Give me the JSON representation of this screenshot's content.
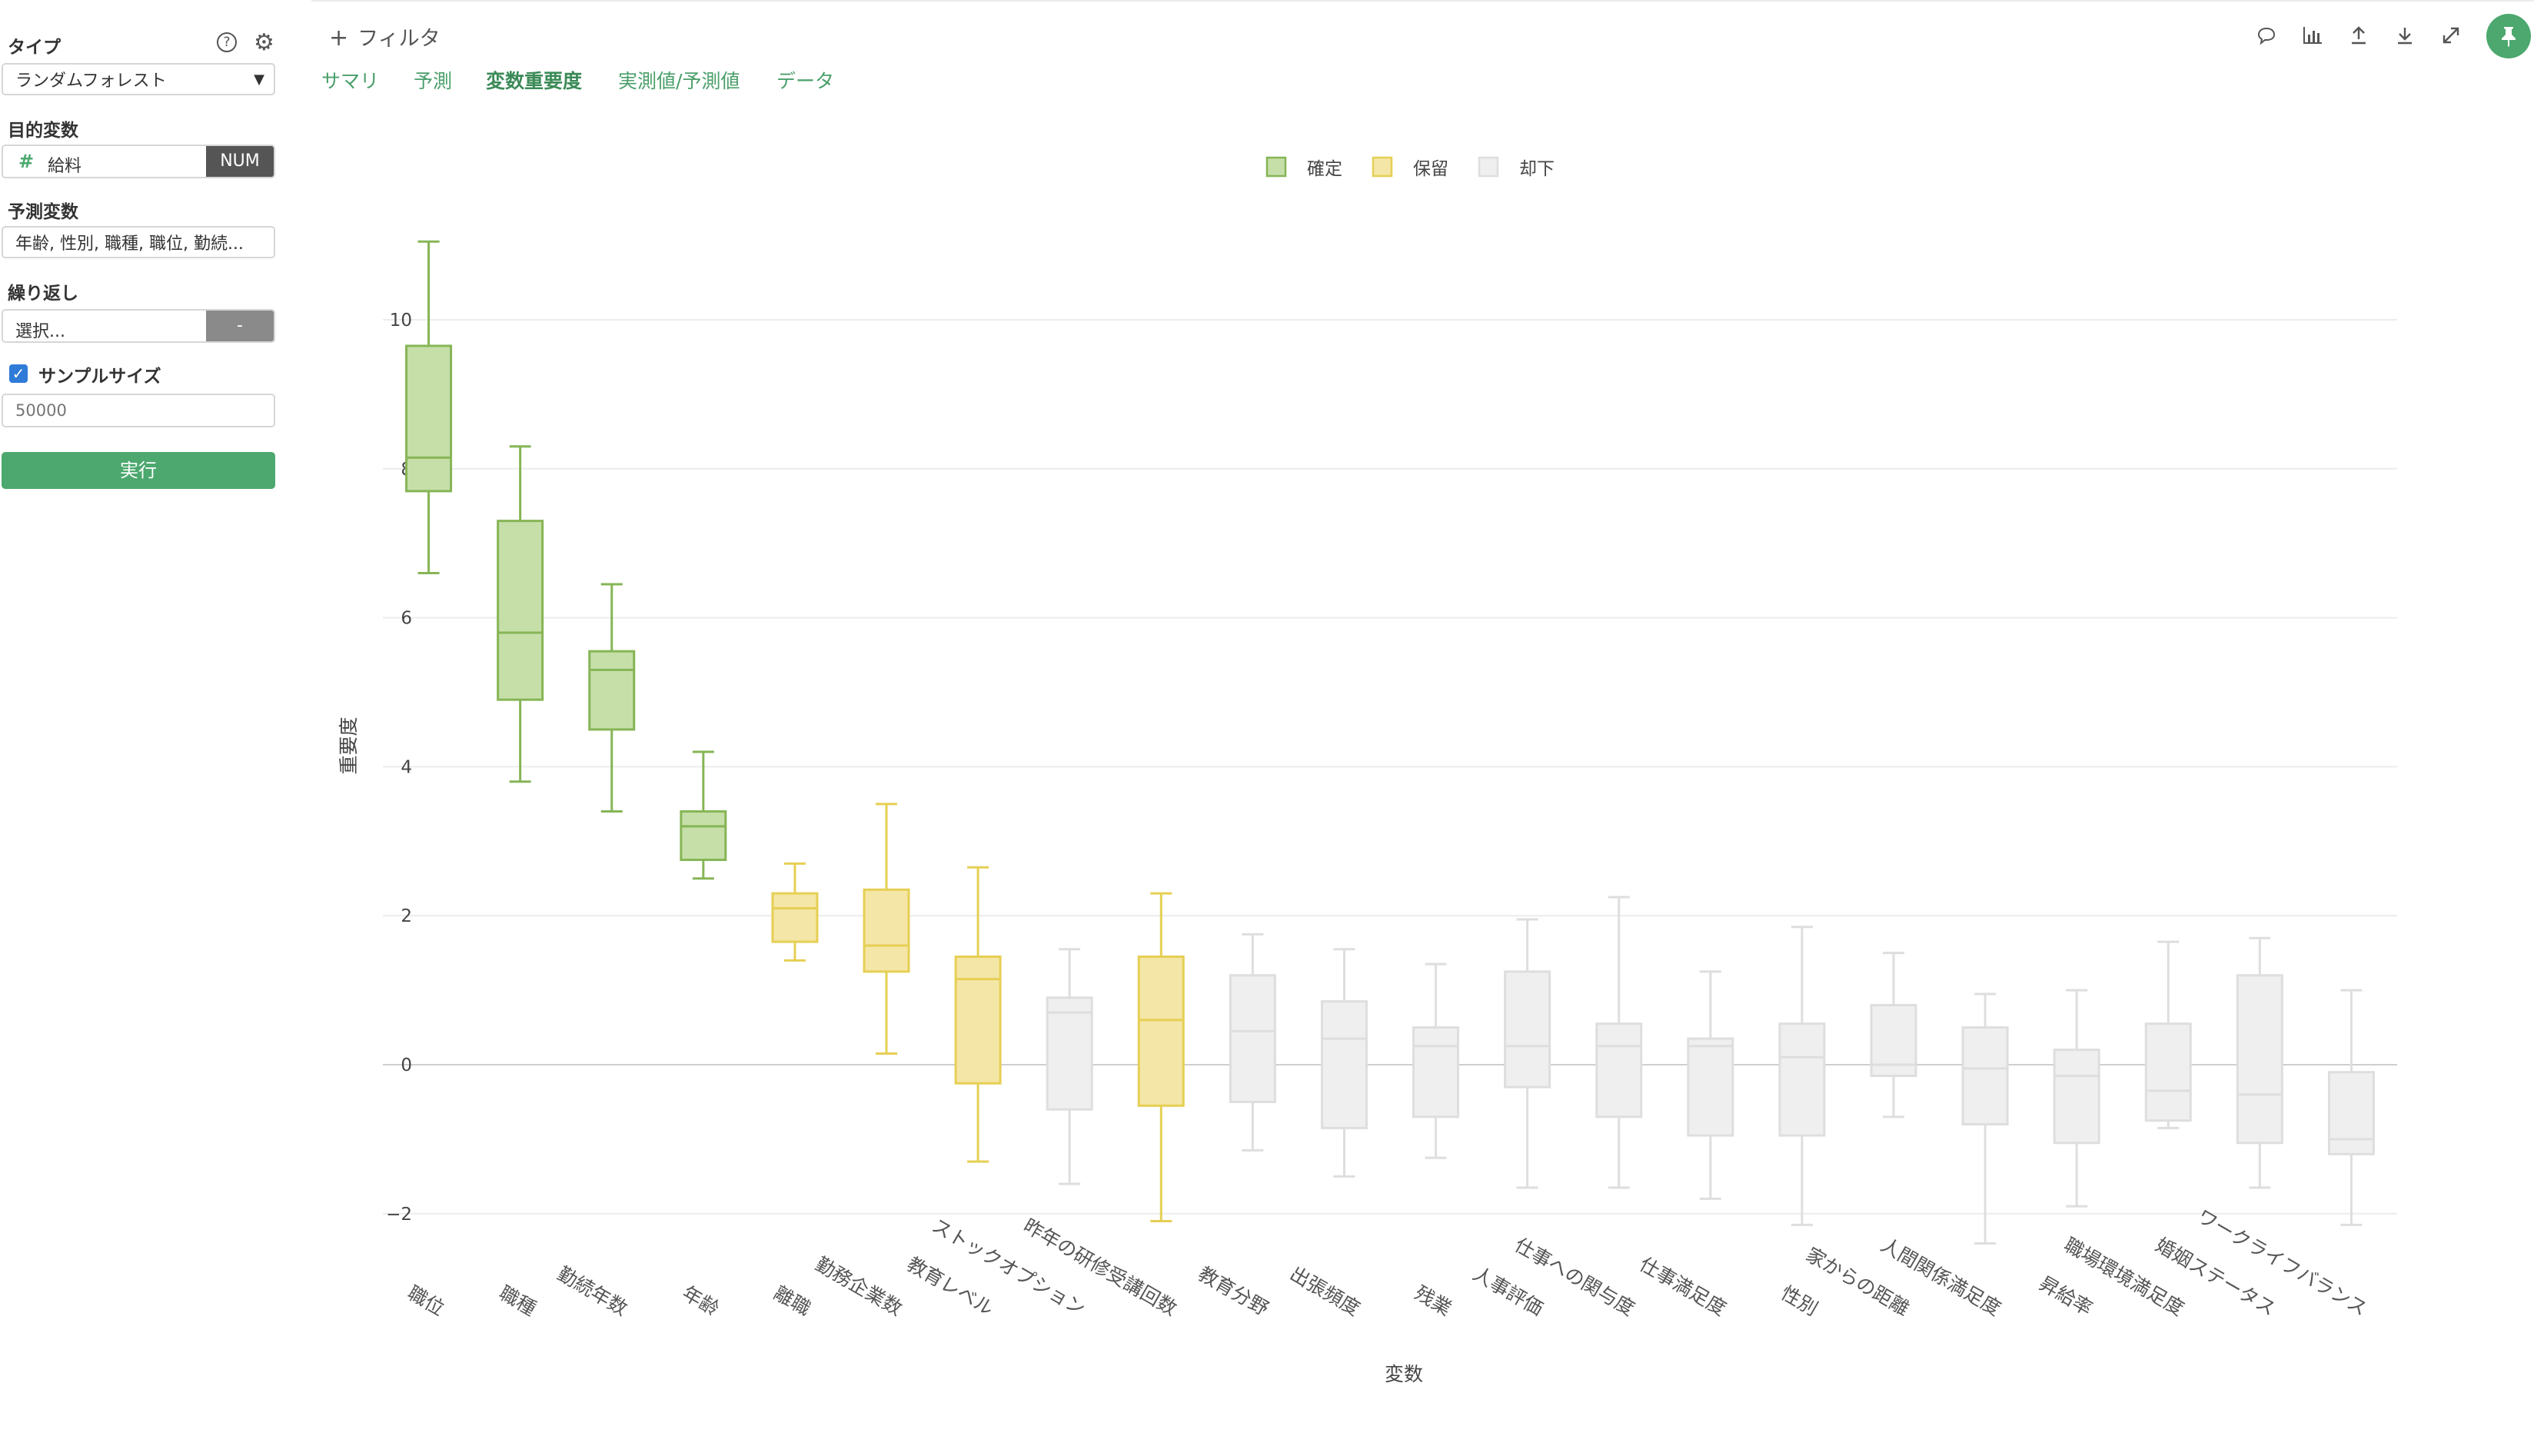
{
  "sidebar": {
    "type_label": "タイプ",
    "type_value": "ランダムフォレスト",
    "target_label": "目的変数",
    "target_value": "給料",
    "target_badge": "NUM",
    "predictor_label": "予測変数",
    "predictor_value": "年齢, 性別, 職種, 職位, 勤続...",
    "repeat_label": "繰り返し",
    "repeat_value": "選択...",
    "repeat_button": "-",
    "sample_label": "サンプルサイズ",
    "sample_checked": true,
    "sample_placeholder": "50000",
    "run_label": "実行"
  },
  "header": {
    "filter_label": "フィルタ",
    "tabs": [
      "サマリ",
      "予測",
      "変数重要度",
      "実測値/予測値",
      "データ"
    ],
    "active_tab": "変数重要度"
  },
  "toolbar": {
    "icons": [
      "comment-icon",
      "chart-icon",
      "export-icon",
      "download-icon",
      "expand-icon",
      "pin-icon"
    ]
  },
  "colors": {
    "accent": "#4ca86e",
    "confirmed_fill": "#c6dfa9",
    "confirmed_stroke": "#86b556",
    "tentative_fill": "#f4e6a6",
    "tentative_stroke": "#e6cf54",
    "rejected_fill": "#efefef",
    "rejected_stroke": "#dedede"
  },
  "chart_data": {
    "type": "box",
    "xlabel": "変数",
    "ylabel": "重要度",
    "ylim": [
      -2.9,
      11.5
    ],
    "yticks": [
      -2,
      0,
      2,
      4,
      6,
      8,
      10
    ],
    "grid": true,
    "legend_position": "top-center",
    "legend": [
      {
        "label": "確定",
        "status": "confirmed"
      },
      {
        "label": "保留",
        "status": "tentative"
      },
      {
        "label": "却下",
        "status": "rejected"
      }
    ],
    "categories": [
      "職位",
      "職種",
      "勤続年数",
      "年齢",
      "離職",
      "勤務企業数",
      "教育レベル",
      "ストックオプション",
      "昨年の研修受講回数",
      "教育分野",
      "出張頻度",
      "残業",
      "人事評価",
      "仕事への関与度",
      "仕事満足度",
      "性別",
      "家からの距離",
      "人間関係満足度",
      "昇給率",
      "職場環境満足度",
      "婚姻ステータス",
      "ワークライフバランス"
    ],
    "boxes": [
      {
        "name": "職位",
        "status": "confirmed",
        "min": 6.6,
        "q1": 7.7,
        "median": 8.15,
        "q3": 9.65,
        "max": 11.05
      },
      {
        "name": "職種",
        "status": "confirmed",
        "min": 3.8,
        "q1": 4.9,
        "median": 5.8,
        "q3": 7.3,
        "max": 8.3
      },
      {
        "name": "勤続年数",
        "status": "confirmed",
        "min": 3.4,
        "q1": 4.5,
        "median": 5.3,
        "q3": 5.55,
        "max": 6.45
      },
      {
        "name": "年齢",
        "status": "confirmed",
        "min": 2.5,
        "q1": 2.75,
        "median": 3.2,
        "q3": 3.4,
        "max": 4.2
      },
      {
        "name": "離職",
        "status": "tentative",
        "min": 1.4,
        "q1": 1.65,
        "median": 2.1,
        "q3": 2.3,
        "max": 2.7
      },
      {
        "name": "勤務企業数",
        "status": "tentative",
        "min": 0.15,
        "q1": 1.25,
        "median": 1.6,
        "q3": 2.35,
        "max": 3.5
      },
      {
        "name": "教育レベル",
        "status": "tentative",
        "min": -1.3,
        "q1": -0.25,
        "median": 1.15,
        "q3": 1.45,
        "max": 2.65
      },
      {
        "name": "ストックオプション",
        "status": "rejected",
        "min": -1.6,
        "q1": -0.6,
        "median": 0.7,
        "q3": 0.9,
        "max": 1.55
      },
      {
        "name": "昨年の研修受講回数",
        "status": "tentative",
        "min": -2.1,
        "q1": -0.55,
        "median": 0.6,
        "q3": 1.45,
        "max": 2.3
      },
      {
        "name": "教育分野",
        "status": "rejected",
        "min": -1.15,
        "q1": -0.5,
        "median": 0.45,
        "q3": 1.2,
        "max": 1.75
      },
      {
        "name": "出張頻度",
        "status": "rejected",
        "min": -1.5,
        "q1": -0.85,
        "median": 0.35,
        "q3": 0.85,
        "max": 1.55
      },
      {
        "name": "残業",
        "status": "rejected",
        "min": -1.25,
        "q1": -0.7,
        "median": 0.25,
        "q3": 0.5,
        "max": 1.35
      },
      {
        "name": "人事評価",
        "status": "rejected",
        "min": -1.65,
        "q1": -0.3,
        "median": 0.25,
        "q3": 1.25,
        "max": 1.95
      },
      {
        "name": "仕事への関与度",
        "status": "rejected",
        "min": -1.65,
        "q1": -0.7,
        "median": 0.25,
        "q3": 0.55,
        "max": 2.25
      },
      {
        "name": "仕事満足度",
        "status": "rejected",
        "min": -1.8,
        "q1": -0.95,
        "median": 0.25,
        "q3": 0.35,
        "max": 1.25
      },
      {
        "name": "性別",
        "status": "rejected",
        "min": -2.15,
        "q1": -0.95,
        "median": 0.1,
        "q3": 0.55,
        "max": 1.85
      },
      {
        "name": "家からの距離",
        "status": "rejected",
        "min": -0.7,
        "q1": -0.15,
        "median": 0.0,
        "q3": 0.8,
        "max": 1.5
      },
      {
        "name": "人間関係満足度",
        "status": "rejected",
        "min": -2.4,
        "q1": -0.8,
        "median": -0.05,
        "q3": 0.5,
        "max": 0.95
      },
      {
        "name": "昇給率",
        "status": "rejected",
        "min": -1.9,
        "q1": -1.05,
        "median": -0.15,
        "q3": 0.2,
        "max": 1.0
      },
      {
        "name": "職場環境満足度",
        "status": "rejected",
        "min": -0.85,
        "q1": -0.75,
        "median": -0.35,
        "q3": 0.55,
        "max": 1.65
      },
      {
        "name": "婚姻ステータス",
        "status": "rejected",
        "min": -1.65,
        "q1": -1.05,
        "median": -0.4,
        "q3": 1.2,
        "max": 1.7
      },
      {
        "name": "ワークライフバランス",
        "status": "rejected",
        "min": -2.15,
        "q1": -1.2,
        "median": -1.0,
        "q3": -0.1,
        "max": 1.0
      }
    ]
  }
}
